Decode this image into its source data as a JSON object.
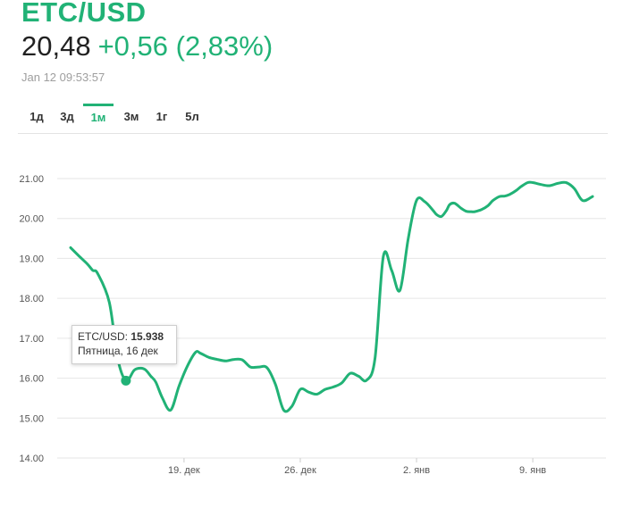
{
  "header": {
    "symbol": "ETC/USD",
    "price": "20,48",
    "change": "+0,56 (2,83%)",
    "timestamp": "Jan 12 09:53:57"
  },
  "tabs": [
    {
      "label": "1д",
      "active": false
    },
    {
      "label": "3д",
      "active": false
    },
    {
      "label": "1м",
      "active": true
    },
    {
      "label": "3м",
      "active": false
    },
    {
      "label": "1г",
      "active": false
    },
    {
      "label": "5л",
      "active": false
    }
  ],
  "tooltip": {
    "series": "ETC/USD:",
    "value": "15.938",
    "date": "Пятница, 16 дек"
  },
  "colors": {
    "accent": "#21b276",
    "grid": "#e6e6e6"
  },
  "chart_data": {
    "type": "line",
    "y_tick_labels": [
      "21.00",
      "20.00",
      "19.00",
      "18.00",
      "17.00",
      "16.00",
      "15.00",
      "14.00"
    ],
    "x_tick_labels": [
      "19. дек",
      "26. дек",
      "2. янв",
      "9. янв"
    ],
    "ylim": [
      14,
      21
    ],
    "x_tick_days": [
      7,
      14,
      21,
      28
    ],
    "xlim": [
      0.17,
      31.6
    ],
    "series": [
      {
        "x": [
          0.17,
          0.7,
          1.2,
          1.5,
          1.8,
          2.5,
          3.0,
          3.5,
          4.0,
          4.4,
          4.7,
          5.0,
          5.3,
          5.7,
          6.2,
          6.7,
          7.2,
          7.7,
          8.0,
          8.5,
          9.0,
          9.5,
          10.0,
          10.5,
          11.0,
          11.5,
          12.0,
          12.5,
          13.0,
          13.5,
          14.0,
          14.5,
          15.0,
          15.5,
          16.0,
          16.5,
          17.0,
          17.5,
          18.0,
          18.5,
          19.0,
          19.5,
          20.0,
          20.5,
          21.0,
          21.5,
          22.0,
          22.2,
          22.5,
          22.8,
          23.0,
          23.3,
          23.7,
          24.0,
          24.3,
          24.5,
          24.9,
          25.3,
          25.6,
          26.0,
          26.3,
          26.6,
          27.0,
          27.3,
          27.7,
          28.0,
          28.5,
          29.0,
          29.5,
          30.0,
          30.5,
          31.0,
          31.6
        ],
        "values": [
          19.27,
          19.05,
          18.85,
          18.7,
          18.62,
          17.9,
          16.5,
          15.94,
          16.2,
          16.25,
          16.2,
          16.05,
          15.9,
          15.5,
          15.2,
          15.8,
          16.3,
          16.65,
          16.62,
          16.52,
          16.47,
          16.43,
          16.47,
          16.46,
          16.28,
          16.28,
          16.26,
          15.85,
          15.2,
          15.3,
          15.72,
          15.65,
          15.6,
          15.72,
          15.78,
          15.88,
          16.12,
          16.05,
          15.95,
          16.5,
          19.05,
          18.7,
          18.2,
          19.5,
          20.45,
          20.42,
          20.2,
          20.1,
          20.05,
          20.2,
          20.35,
          20.38,
          20.25,
          20.18,
          20.17,
          20.17,
          20.22,
          20.32,
          20.45,
          20.55,
          20.56,
          20.6,
          20.7,
          20.8,
          20.9,
          20.9,
          20.85,
          20.82,
          20.88,
          20.9,
          20.75,
          20.45,
          20.55
        ]
      }
    ],
    "highlight_point": {
      "x": 3.5,
      "y": 15.938
    },
    "grid": true
  }
}
